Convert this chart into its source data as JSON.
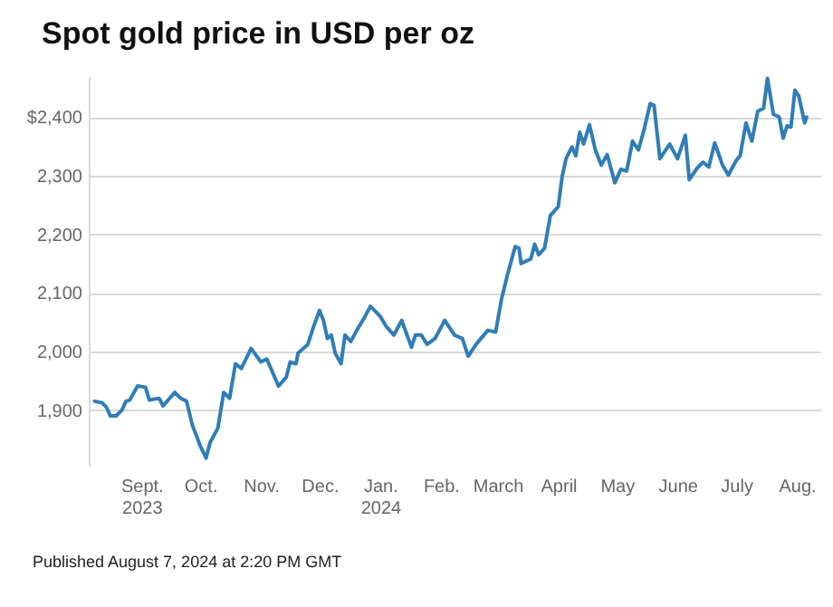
{
  "chart_data": {
    "type": "line",
    "title": "Spot gold price in USD per oz",
    "annotations": [
      "Published August 7, 2024 at 2:20 PM GMT"
    ],
    "x": [
      "2023-08-08",
      "2023-08-12",
      "2023-08-14",
      "2023-08-16",
      "2023-08-19",
      "2023-08-22",
      "2023-08-24",
      "2023-08-26",
      "2023-08-30",
      "2023-09-03",
      "2023-09-05",
      "2023-09-10",
      "2023-09-12",
      "2023-09-18",
      "2023-09-21",
      "2023-09-24",
      "2023-09-27",
      "2023-10-01",
      "2023-10-04",
      "2023-10-06",
      "2023-10-10",
      "2023-10-13",
      "2023-10-16",
      "2023-10-19",
      "2023-10-22",
      "2023-10-27",
      "2023-11-01",
      "2023-11-04",
      "2023-11-10",
      "2023-11-14",
      "2023-11-16",
      "2023-11-19",
      "2023-11-20",
      "2023-11-25",
      "2023-11-28",
      "2023-12-01",
      "2023-12-03",
      "2023-12-05",
      "2023-12-07",
      "2023-12-09",
      "2023-12-12",
      "2023-12-14",
      "2023-12-17",
      "2023-12-20",
      "2023-12-24",
      "2023-12-27",
      "2024-01-01",
      "2024-01-04",
      "2024-01-08",
      "2024-01-12",
      "2024-01-17",
      "2024-01-19",
      "2024-01-22",
      "2024-01-25",
      "2024-01-29",
      "2024-02-03",
      "2024-02-08",
      "2024-02-12",
      "2024-02-15",
      "2024-02-19",
      "2024-02-25",
      "2024-02-29",
      "2024-03-03",
      "2024-03-06",
      "2024-03-10",
      "2024-03-12",
      "2024-03-13",
      "2024-03-18",
      "2024-03-20",
      "2024-03-22",
      "2024-03-25",
      "2024-03-28",
      "2024-04-01",
      "2024-04-03",
      "2024-04-05",
      "2024-04-08",
      "2024-04-10",
      "2024-04-12",
      "2024-04-14",
      "2024-04-17",
      "2024-04-20",
      "2024-04-23",
      "2024-04-26",
      "2024-04-30",
      "2024-05-03",
      "2024-05-06",
      "2024-05-09",
      "2024-05-12",
      "2024-05-15",
      "2024-05-18",
      "2024-05-20",
      "2024-05-23",
      "2024-05-28",
      "2024-06-01",
      "2024-06-05",
      "2024-06-07",
      "2024-06-11",
      "2024-06-14",
      "2024-06-17",
      "2024-06-20",
      "2024-06-24",
      "2024-06-27",
      "2024-07-01",
      "2024-07-03",
      "2024-07-06",
      "2024-07-09",
      "2024-07-12",
      "2024-07-15",
      "2024-07-17",
      "2024-07-20",
      "2024-07-23",
      "2024-07-25",
      "2024-07-27",
      "2024-07-29",
      "2024-07-31",
      "2024-08-02",
      "2024-08-05",
      "2024-08-06"
    ],
    "series": [
      {
        "color": "#2f7db8",
        "values": [
          1915,
          1912,
          1905,
          1890,
          1890,
          1900,
          1915,
          1917,
          1941,
          1939,
          1917,
          1920,
          1907,
          1930,
          1920,
          1915,
          1874,
          1839,
          1818,
          1844,
          1869,
          1930,
          1920,
          1979,
          1971,
          2005,
          1982,
          1987,
          1941,
          1956,
          1982,
          1979,
          1997,
          2012,
          2043,
          2070,
          2053,
          2022,
          2028,
          1997,
          1979,
          2028,
          2017,
          2036,
          2058,
          2077,
          2060,
          2043,
          2028,
          2053,
          2007,
          2028,
          2028,
          2012,
          2022,
          2053,
          2028,
          2022,
          1992,
          2012,
          2036,
          2033,
          2089,
          2130,
          2179,
          2176,
          2150,
          2158,
          2183,
          2165,
          2176,
          2232,
          2247,
          2298,
          2329,
          2349,
          2334,
          2374,
          2354,
          2387,
          2344,
          2318,
          2336,
          2288,
          2311,
          2308,
          2359,
          2344,
          2380,
          2423,
          2420,
          2329,
          2354,
          2329,
          2369,
          2293,
          2313,
          2323,
          2315,
          2356,
          2318,
          2301,
          2326,
          2334,
          2390,
          2359,
          2410,
          2415,
          2466,
          2405,
          2400,
          2364,
          2385,
          2383,
          2446,
          2436,
          2390,
          2400
        ]
      }
    ],
    "xlim": [
      "2023-08-05",
      "2024-08-13"
    ],
    "xticks": [
      {
        "value": "2023-09-01",
        "label": "Sept.\n2023"
      },
      {
        "value": "2023-10-01",
        "label": "Oct."
      },
      {
        "value": "2023-11-01",
        "label": "Nov."
      },
      {
        "value": "2023-12-01",
        "label": "Dec."
      },
      {
        "value": "2024-01-01",
        "label": "Jan.\n2024"
      },
      {
        "value": "2024-02-01",
        "label": "Feb."
      },
      {
        "value": "2024-03-01",
        "label": "March"
      },
      {
        "value": "2024-04-01",
        "label": "April"
      },
      {
        "value": "2024-05-01",
        "label": "May"
      },
      {
        "value": "2024-06-01",
        "label": "June"
      },
      {
        "value": "2024-07-01",
        "label": "July"
      },
      {
        "value": "2024-08-01",
        "label": "Aug."
      }
    ],
    "ylim": [
      1805,
      2470
    ],
    "yticks": [
      {
        "value": 1900,
        "label": "1,900"
      },
      {
        "value": 2000,
        "label": "2,000"
      },
      {
        "value": 2100,
        "label": "2,100"
      },
      {
        "value": 2200,
        "label": "2,200"
      },
      {
        "value": 2300,
        "label": "2,300"
      },
      {
        "value": 2400,
        "label": "$2,400"
      }
    ],
    "grid": "y",
    "line_style": "solid"
  }
}
